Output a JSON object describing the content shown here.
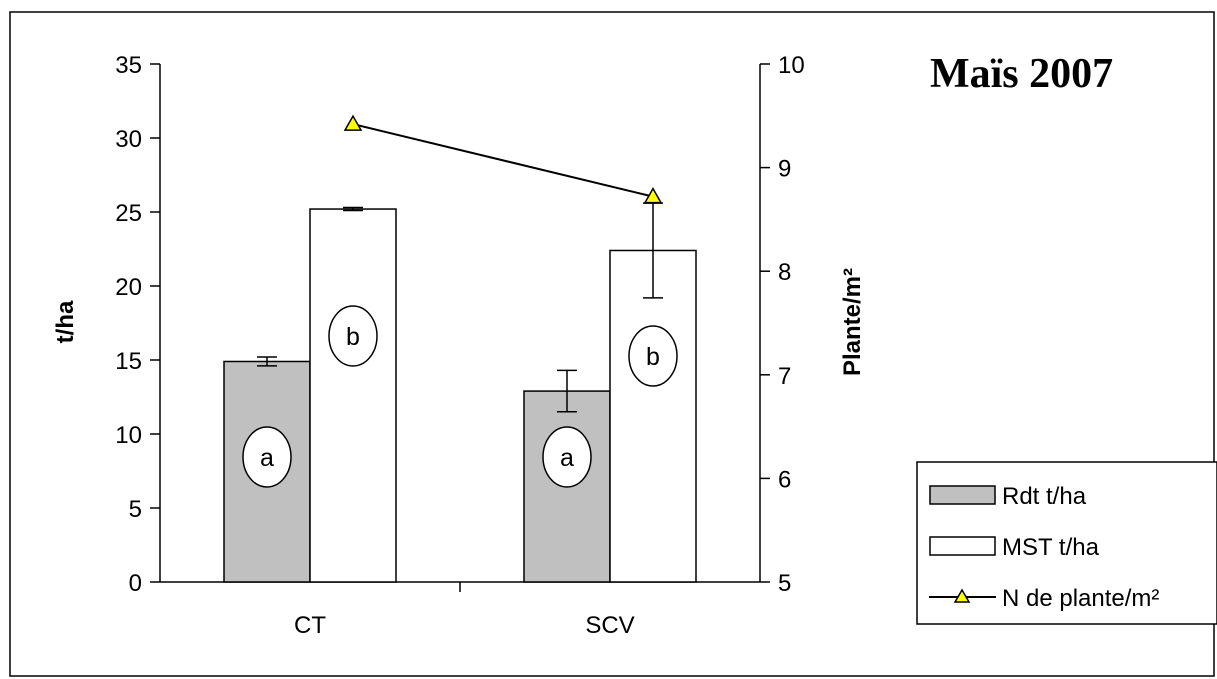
{
  "chart_data": {
    "type": "bar",
    "title": "Maïs 2007",
    "categories": [
      "CT",
      "SCV"
    ],
    "series": [
      {
        "name": "Rdt t/ha",
        "axis": "left",
        "values": [
          14.9,
          12.9
        ],
        "error": [
          0.3,
          1.4
        ],
        "letters": [
          "a",
          "a"
        ],
        "color": "#c0c0c0"
      },
      {
        "name": "MST t/ha",
        "axis": "left",
        "values": [
          25.2,
          22.4
        ],
        "error": [
          0.1,
          3.2
        ],
        "letters": [
          "b",
          "b"
        ],
        "color": "#ffffff"
      },
      {
        "name": "N de plante/m²",
        "axis": "right",
        "type": "line",
        "values": [
          9.42,
          8.72
        ],
        "marker": "triangle",
        "marker_color": "#ffff00"
      }
    ],
    "y_left": {
      "label": "t/ha",
      "range": [
        0,
        35
      ],
      "ticks": [
        "0",
        "5",
        "10",
        "15",
        "20",
        "25",
        "30",
        "35"
      ]
    },
    "y_right": {
      "label": "Plante/m²",
      "range": [
        5,
        10
      ],
      "ticks": [
        "5",
        "6",
        "7",
        "8",
        "9",
        "10"
      ]
    },
    "grid": false,
    "legend_position": "right"
  }
}
